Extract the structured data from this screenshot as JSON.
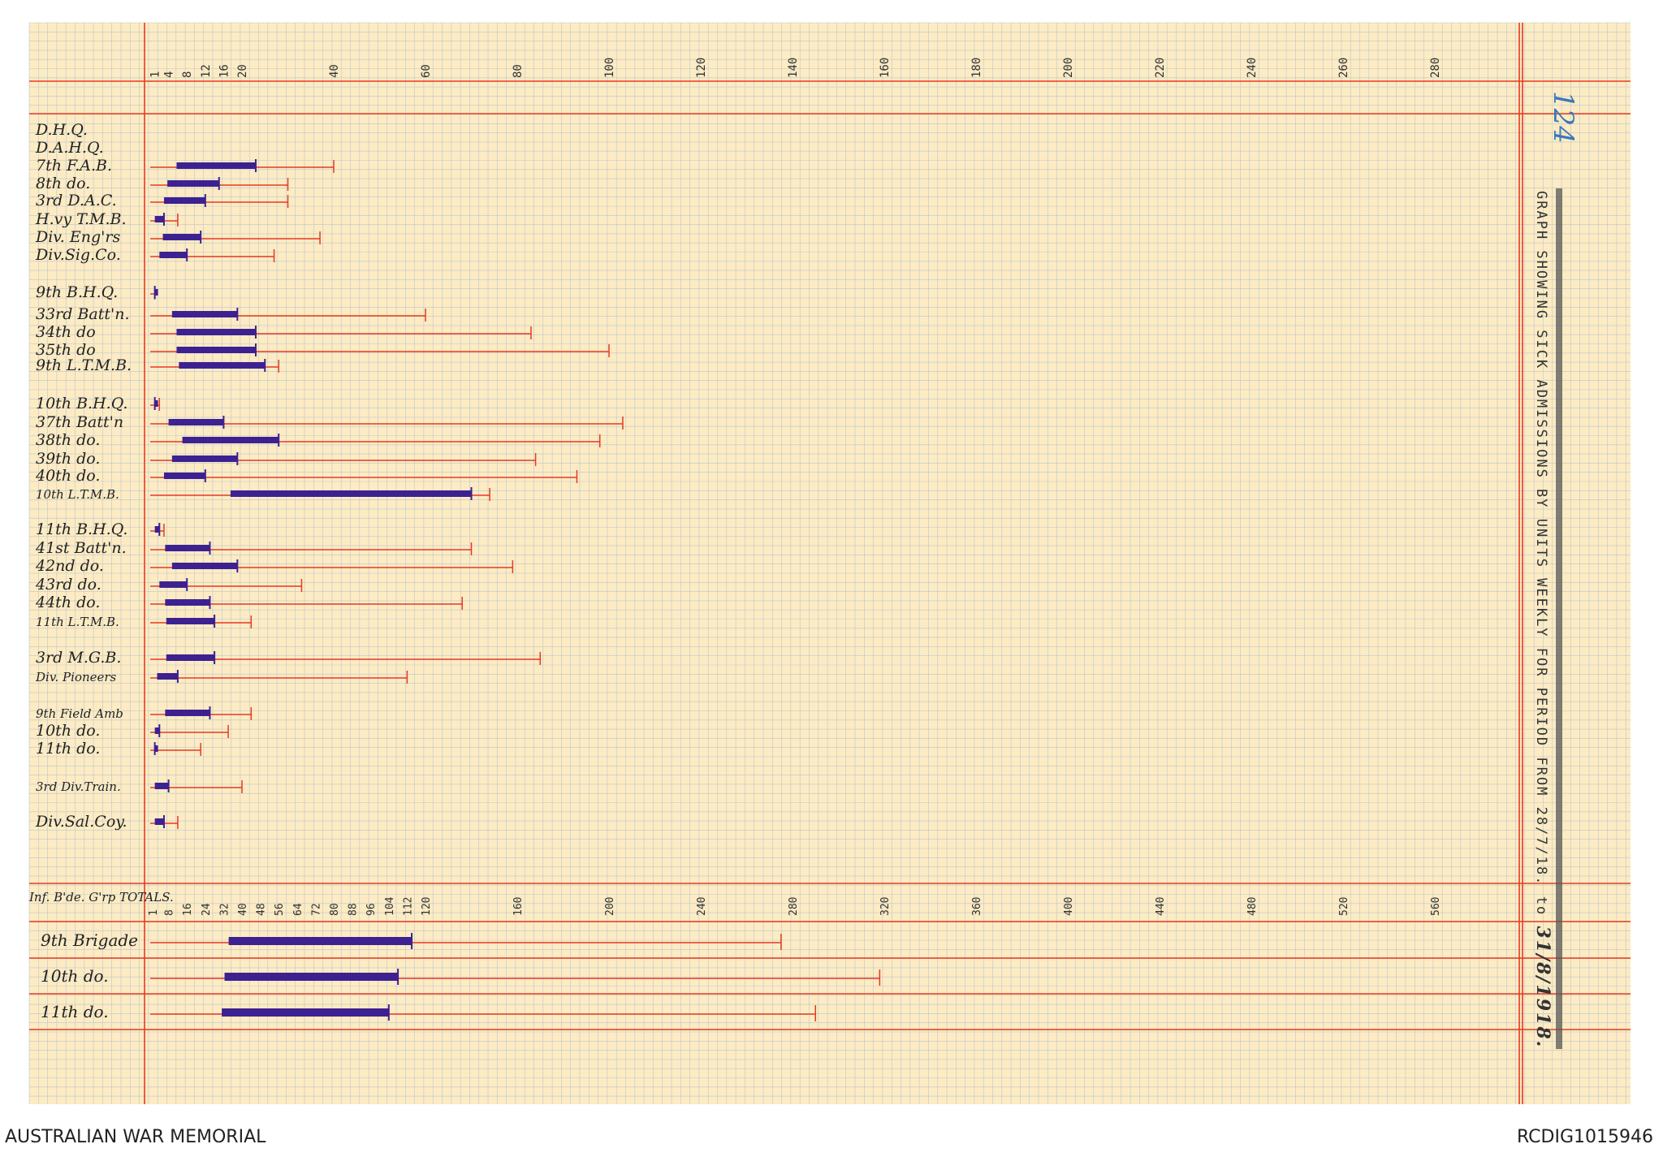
{
  "page_number": "124",
  "footer": {
    "left": "AUSTRALIAN WAR MEMORIAL",
    "right": "RCDIG1015946"
  },
  "colors": {
    "paper": "#fdebc3",
    "grid": "#b9c8ce",
    "red": "#e53a22",
    "bar": "#3d2191",
    "bar_light": "#2e54b5"
  },
  "chart_data": [
    {
      "type": "bar",
      "orientation": "horizontal",
      "title": "GRAPH SHOWING SICK ADMISSIONS BY UNITS WEEKLY FOR PERIOD FROM",
      "date_from": "28/7/18.",
      "date_to": "31/8/1918.",
      "to_word": "to",
      "grid": true,
      "x_ticks": [
        1,
        4,
        8,
        12,
        16,
        20,
        40,
        60,
        80,
        100,
        120,
        140,
        160,
        180,
        200,
        220,
        240,
        260,
        280
      ],
      "categories": [
        "D.H.Q.",
        "D.A.H.Q.",
        "7th F.A.B.",
        "8th do.",
        "3rd D.A.C.",
        "H.vy T.M.B.",
        "Div. Eng'rs",
        "Div.Sig.Co.",
        "9th B.H.Q.",
        "33rd Batt'n.",
        "34th do",
        "35th do",
        "9th L.T.M.B.",
        "10th B.H.Q.",
        "37th Batt'n",
        "38th do.",
        "39th do.",
        "40th do.",
        "10th L.T.M.B.",
        "11th B.H.Q.",
        "41st Batt'n.",
        "42nd do.",
        "43rd do.",
        "44th do.",
        "11th L.T.M.B.",
        "3rd M.G.B.",
        "Div. Pioneers",
        "9th Field Amb",
        "10th do.",
        "11th do.",
        "3rd Div.Train.",
        "Div.Sal.Coy."
      ],
      "series": [
        {
          "values": [
            0,
            0,
            23,
            15,
            12,
            3,
            11,
            8,
            1,
            19,
            23,
            23,
            25,
            1,
            16,
            28,
            19,
            12,
            70,
            2,
            13,
            19,
            8,
            13,
            14,
            14,
            6,
            13,
            2,
            1,
            4,
            3
          ]
        },
        {
          "values": [
            0,
            0,
            40,
            30,
            30,
            6,
            37,
            27,
            1,
            60,
            83,
            100,
            28,
            2,
            103,
            98,
            84,
            93,
            74,
            3,
            70,
            79,
            33,
            68,
            22,
            85,
            56,
            22,
            17,
            11,
            20,
            6
          ]
        }
      ]
    },
    {
      "type": "bar",
      "orientation": "horizontal",
      "title": "Inf. B'de. G'rp TOTALS.",
      "grid": true,
      "x_ticks": [
        1,
        8,
        16,
        24,
        32,
        40,
        48,
        56,
        64,
        72,
        80,
        88,
        96,
        104,
        112,
        120,
        160,
        200,
        240,
        280,
        320,
        360,
        400,
        440,
        480,
        520,
        560
      ],
      "categories": [
        "9th Brigade",
        "10th do.",
        "11th do."
      ],
      "series": [
        {
          "values": [
            114,
            108,
            104
          ]
        },
        {
          "values": [
            275,
            318,
            290
          ]
        }
      ]
    }
  ],
  "side_text": "GRAPH SHOWING SICK ADMISSIONS BY UNITS WEEKLY FOR PERIOD FROM 28/7/18. to 31/8/1918."
}
